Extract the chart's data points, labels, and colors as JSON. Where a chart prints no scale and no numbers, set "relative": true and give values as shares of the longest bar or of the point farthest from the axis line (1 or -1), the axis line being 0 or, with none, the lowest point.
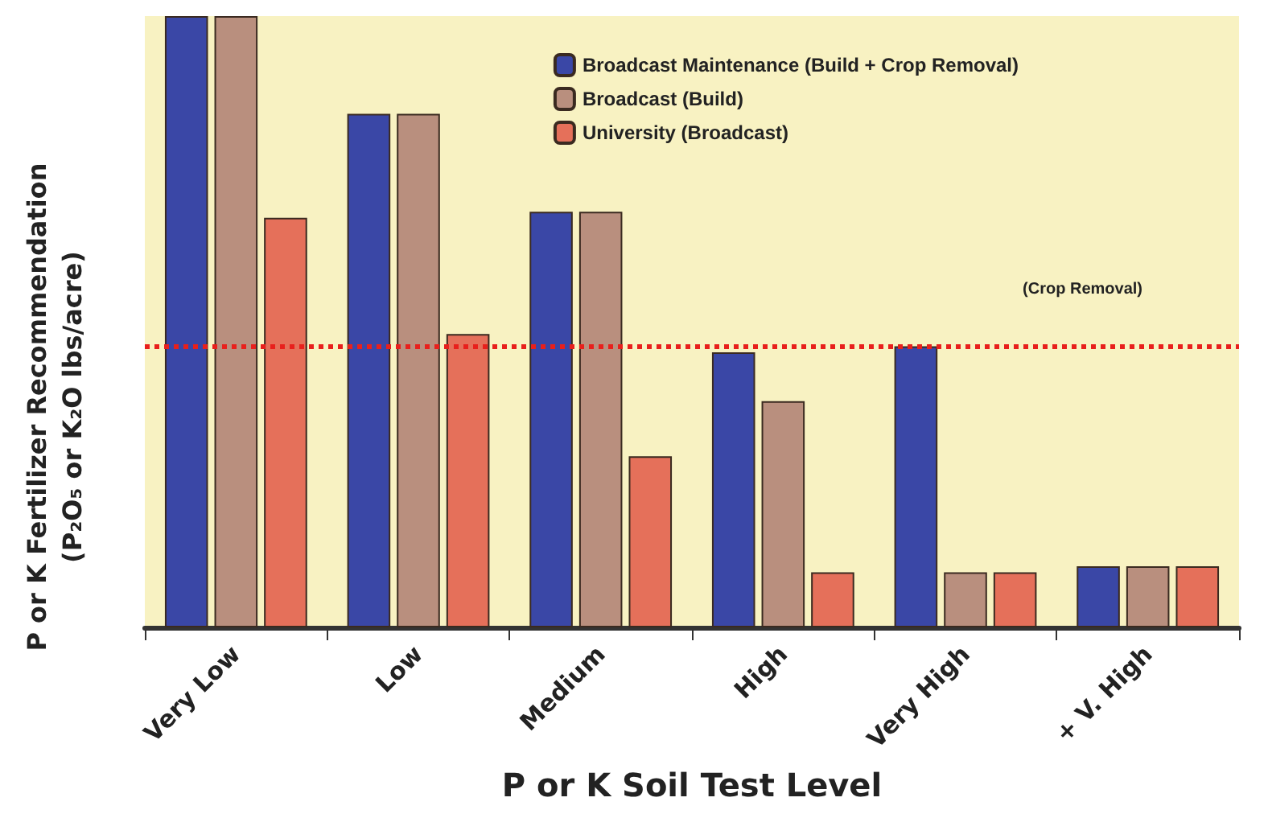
{
  "chart_data": {
    "type": "bar",
    "relative": true,
    "xlabel": "P or K Soil Test Level",
    "ylabel": "P or K Fertilizer Recommendation\n(P₂O₅ or K₂O lbs/acre)",
    "categories": [
      "Very Low",
      "Low",
      "Medium",
      "High",
      "Very High",
      "+ V. High"
    ],
    "series": [
      {
        "name": "Broadcast Maintenance (Build + Crop Removal)",
        "color": "#3a47a6",
        "values": [
          1,
          0.84,
          0.68,
          0.45,
          0.46,
          0.1
        ]
      },
      {
        "name": "Broadcast (Build)",
        "color": "#b98f7e",
        "values": [
          1,
          0.84,
          0.68,
          0.37,
          0.09,
          0.1
        ]
      },
      {
        "name": "University (Broadcast)",
        "color": "#e5705a",
        "values": [
          0.67,
          0.48,
          0.28,
          0.09,
          0.09,
          0.1
        ]
      }
    ],
    "ref_lines": [
      {
        "axis": "y",
        "value": 0.46,
        "label": "(Crop Removal)",
        "color": "#e8201c",
        "line_style": "dotted"
      }
    ],
    "legend": "top right",
    "grid": false
  }
}
